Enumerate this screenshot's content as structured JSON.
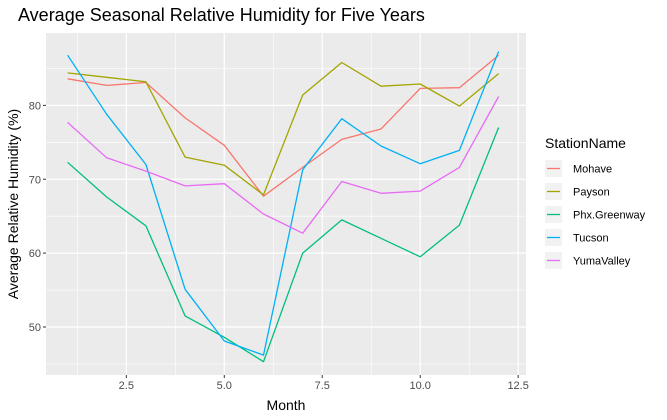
{
  "chart_data": {
    "type": "line",
    "title": "Average Seasonal Relative Humidity for Five Years",
    "xlabel": "Month",
    "ylabel": "Average Relative Humidity (%)",
    "x": [
      1,
      2,
      3,
      4,
      5,
      6,
      7,
      8,
      9,
      10,
      11,
      12
    ],
    "xlim": [
      0.45,
      12.7
    ],
    "ylim": [
      43.5,
      89.8
    ],
    "x_ticks": [
      2.5,
      5.0,
      7.5,
      10.0,
      12.5
    ],
    "x_tick_labels": [
      "2.5",
      "5.0",
      "7.5",
      "10.0",
      "12.5"
    ],
    "y_ticks": [
      50,
      60,
      70,
      80
    ],
    "y_tick_labels": [
      "50",
      "60",
      "70",
      "80"
    ],
    "grid": true,
    "legend_position": "right",
    "legend_title": "StationName",
    "series": [
      {
        "name": "Mohave",
        "color": "#F8766D",
        "values": [
          83.6,
          82.7,
          83.1,
          78.3,
          74.6,
          67.7,
          71.6,
          75.4,
          76.8,
          82.3,
          82.4,
          86.8
        ]
      },
      {
        "name": "Payson",
        "color": "#A3A500",
        "values": [
          84.4,
          83.8,
          83.2,
          73.0,
          71.9,
          67.9,
          81.4,
          85.8,
          82.6,
          82.9,
          79.9,
          84.3
        ]
      },
      {
        "name": "Phx.Greenway",
        "color": "#00BF7D",
        "values": [
          72.3,
          67.6,
          63.7,
          51.5,
          48.6,
          45.3,
          60.0,
          64.5,
          62.0,
          59.5,
          63.8,
          77.0
        ]
      },
      {
        "name": "Tucson",
        "color": "#00B0F6",
        "values": [
          86.8,
          78.8,
          72.0,
          55.1,
          48.1,
          46.2,
          71.3,
          78.2,
          74.5,
          72.1,
          73.9,
          87.3
        ]
      },
      {
        "name": "YumaValley",
        "color": "#E76BF3",
        "values": [
          77.7,
          72.9,
          71.1,
          69.1,
          69.4,
          65.3,
          62.7,
          69.7,
          68.1,
          68.4,
          71.6,
          81.2
        ]
      }
    ]
  }
}
